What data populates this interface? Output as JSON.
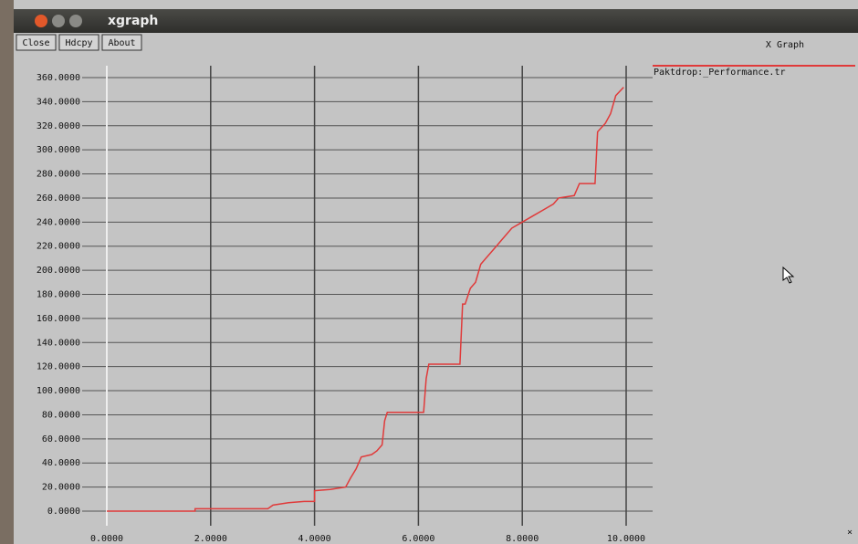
{
  "window": {
    "title": "xgraph",
    "buttons": [
      "Close",
      "Hdcpy",
      "About"
    ],
    "label": "X Graph",
    "corner": "×"
  },
  "chart_data": {
    "type": "line",
    "xlim": [
      0,
      10
    ],
    "ylim": [
      0,
      360
    ],
    "xticks": [
      {
        "value": 0,
        "label": "0.0000"
      },
      {
        "value": 2,
        "label": "2.0000"
      },
      {
        "value": 4,
        "label": "4.0000"
      },
      {
        "value": 6,
        "label": "6.0000"
      },
      {
        "value": 8,
        "label": "8.0000"
      },
      {
        "value": 10,
        "label": "10.0000"
      }
    ],
    "yticks": [
      {
        "value": 0,
        "label": "0.0000"
      },
      {
        "value": 20,
        "label": "20.0000"
      },
      {
        "value": 40,
        "label": "40.0000"
      },
      {
        "value": 60,
        "label": "60.0000"
      },
      {
        "value": 80,
        "label": "80.0000"
      },
      {
        "value": 100,
        "label": "100.0000"
      },
      {
        "value": 120,
        "label": "120.0000"
      },
      {
        "value": 140,
        "label": "140.0000"
      },
      {
        "value": 160,
        "label": "160.0000"
      },
      {
        "value": 180,
        "label": "180.0000"
      },
      {
        "value": 200,
        "label": "200.0000"
      },
      {
        "value": 220,
        "label": "220.0000"
      },
      {
        "value": 240,
        "label": "240.0000"
      },
      {
        "value": 260,
        "label": "260.0000"
      },
      {
        "value": 280,
        "label": "280.0000"
      },
      {
        "value": 300,
        "label": "300.0000"
      },
      {
        "value": 320,
        "label": "320.0000"
      },
      {
        "value": 340,
        "label": "340.0000"
      },
      {
        "value": 360,
        "label": "360.0000"
      }
    ],
    "grid": true,
    "x": [
      0,
      1.7,
      1.7,
      3.1,
      3.2,
      3.5,
      3.8,
      4.0,
      4.0,
      4.3,
      4.6,
      4.7,
      4.8,
      4.9,
      5.1,
      5.2,
      5.3,
      5.35,
      5.4,
      6.1,
      6.15,
      6.2,
      6.8,
      6.85,
      6.9,
      7.0,
      7.1,
      7.2,
      7.3,
      7.5,
      7.6,
      7.7,
      7.8,
      8.0,
      8.2,
      8.4,
      8.6,
      8.7,
      9.0,
      9.1,
      9.4,
      9.45,
      9.6,
      9.7,
      9.8,
      9.95
    ],
    "series": [
      {
        "name": "Paktdrop:_Performance.tr",
        "color": "#e03a3a",
        "values": [
          0,
          0,
          2,
          2,
          5,
          7,
          8,
          8,
          17,
          18,
          20,
          28,
          35,
          45,
          47,
          50,
          55,
          75,
          82,
          82,
          110,
          122,
          122,
          172,
          172,
          185,
          190,
          205,
          210,
          220,
          225,
          230,
          235,
          240,
          245,
          250,
          255,
          260,
          262,
          272,
          272,
          315,
          322,
          330,
          345,
          352
        ]
      }
    ]
  }
}
